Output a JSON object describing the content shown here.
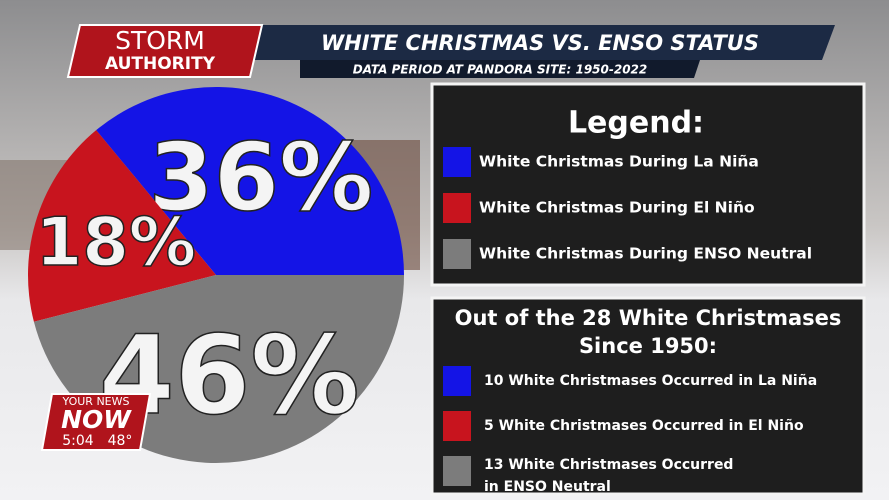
{
  "chart_data": {
    "type": "pie",
    "title": "WHITE CHRISTMAS VS. ENSO STATUS",
    "subtitle": "DATA PERIOD AT PANDORA SITE: 1950-2022",
    "legend_title": "Legend:",
    "categories": [
      "White Christmas During La Niña",
      "White Christmas During El Niño",
      "White Christmas During ENSO Neutral"
    ],
    "values": [
      36,
      18,
      46
    ],
    "value_labels": [
      "36%",
      "18%",
      "46%"
    ],
    "colors": [
      "#1414e6",
      "#c8141e",
      "#7c7c7c"
    ]
  },
  "summary": {
    "title": [
      "Out of the 28 White Christmases",
      "Since 1950:"
    ],
    "items": [
      [
        "10 White Christmases Occurred in La Niña"
      ],
      [
        "5 White Christmases Occurred in El Niño"
      ],
      [
        "13 White Christmases Occurred",
        "in ENSO Neutral"
      ]
    ]
  },
  "branding": {
    "show": [
      "STORM",
      "AUTHORITY"
    ],
    "station": [
      "YOUR NEWS",
      "NOW"
    ],
    "time": "5:04",
    "temperature": "48°"
  }
}
